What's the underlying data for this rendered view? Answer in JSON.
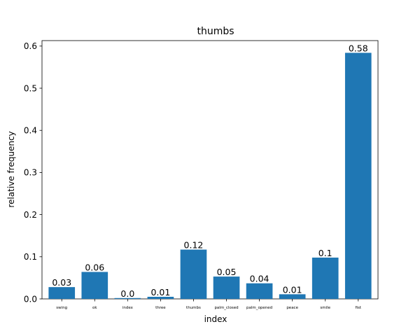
{
  "chart_data": {
    "type": "bar",
    "title": "thumbs",
    "xlabel": "index",
    "ylabel": "relative frequency",
    "categories": [
      "swing",
      "ok",
      "index",
      "three",
      "thumbs",
      "palm_closed",
      "palm_opened",
      "peace",
      "smile",
      "fist"
    ],
    "values": [
      0.028,
      0.064,
      0.002,
      0.005,
      0.117,
      0.053,
      0.037,
      0.011,
      0.098,
      0.584
    ],
    "data_labels": [
      "0.03",
      "0.06",
      "0.0",
      "0.01",
      "0.12",
      "0.05",
      "0.04",
      "0.01",
      "0.1",
      "0.58"
    ],
    "ylim": [
      0,
      0.613
    ],
    "yticks": [
      0.0,
      0.1,
      0.2,
      0.3,
      0.4,
      0.5,
      0.6
    ],
    "ytick_labels": [
      "0.0",
      "0.1",
      "0.2",
      "0.3",
      "0.4",
      "0.5",
      "0.6"
    ],
    "bar_color": "#1f77b4",
    "grid": false,
    "legend": "none"
  }
}
